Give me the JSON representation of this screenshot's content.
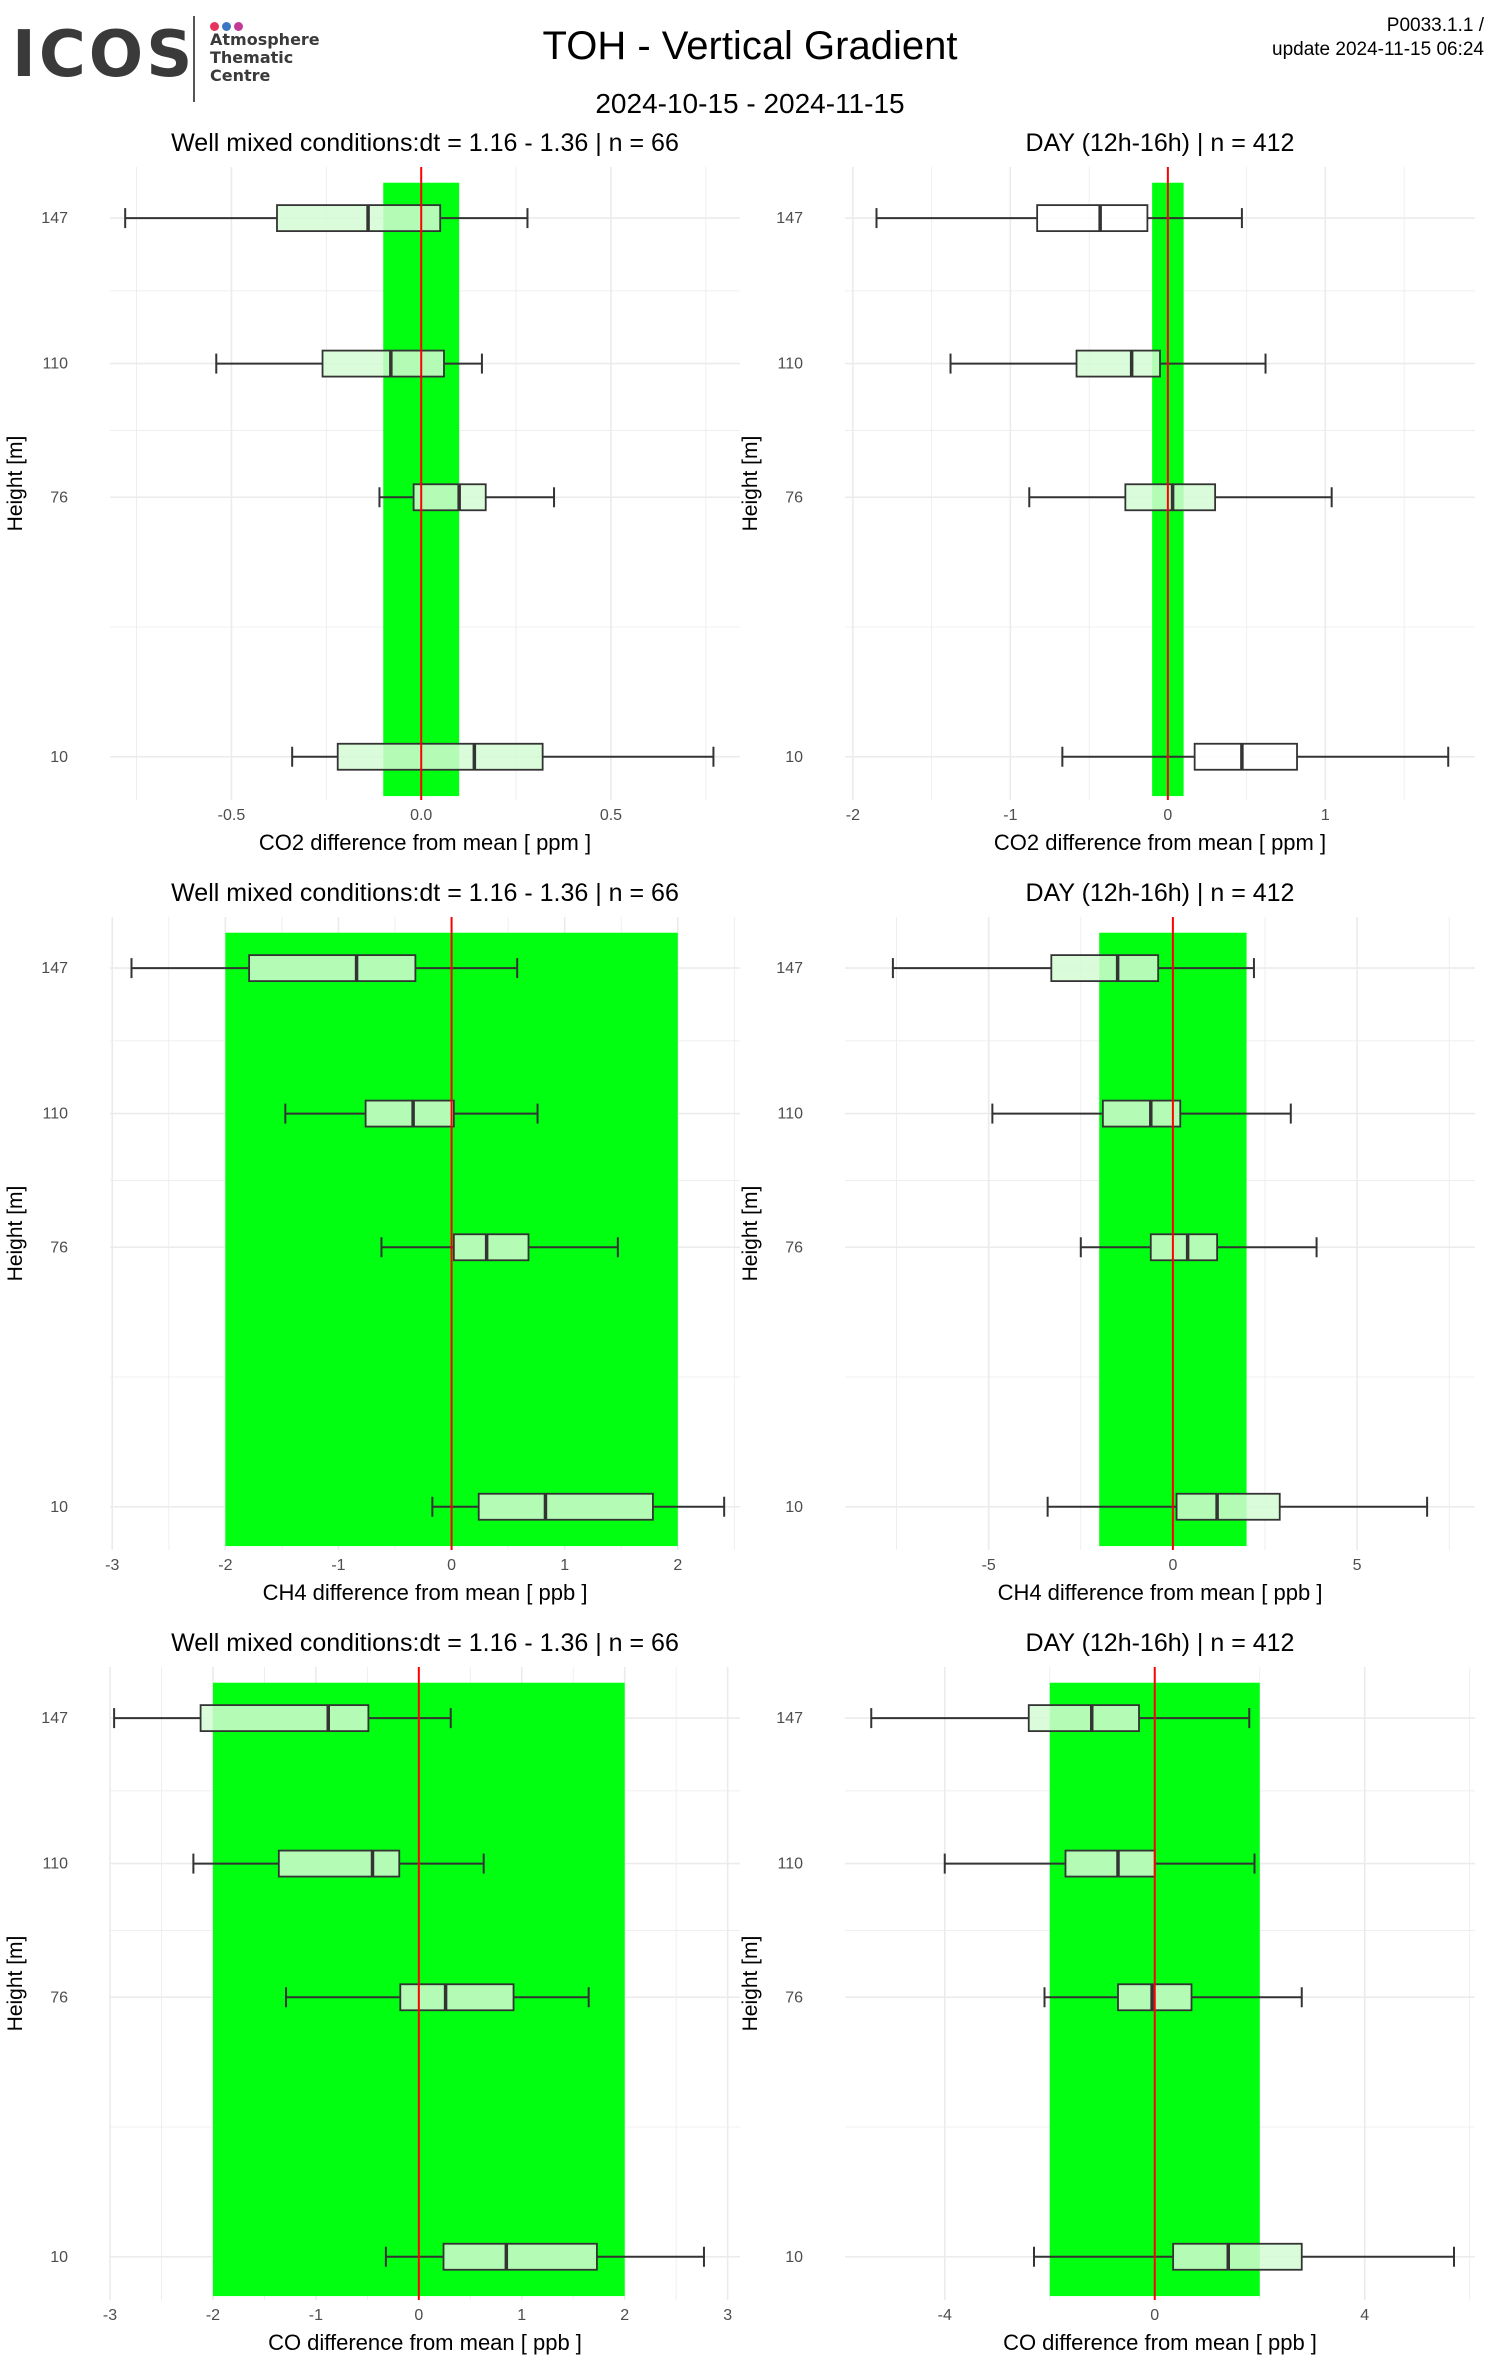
{
  "header": {
    "logo_text": "ICOS",
    "logo_sub_lines": [
      "Atmosphere",
      "Thematic",
      "Centre"
    ],
    "logo_dot_colors": [
      "#e8335c",
      "#3a76c4",
      "#c33a96"
    ],
    "title": "TOH - Vertical Gradient",
    "version": "P0033.1.1 /",
    "update": "update  2024-11-15 06:24",
    "date_range": "2024-10-15 - 2024-11-15"
  },
  "colors": {
    "band": "#00ff11",
    "zero_line": "#ff0000",
    "box_fill": "#ffffff",
    "box_fill_on_band": "#d4fcd4",
    "grid": "#ebebeb"
  },
  "chart_data": [
    {
      "type": "boxplot",
      "title": "Well mixed conditions:dt = 1.16 - 1.36 | n = 66",
      "xlabel": "CO2  difference from mean [ ppm ]",
      "ylabel": "Height [m]",
      "xlim": [
        -0.82,
        0.84
      ],
      "xticks": [
        -0.5,
        0.0,
        0.5
      ],
      "xtick_labels": [
        "-0.5",
        "0.0",
        "0.5"
      ],
      "ylim": [
        -1,
        160
      ],
      "yticks": [
        147,
        110,
        76,
        10
      ],
      "band": [
        -0.1,
        0.1
      ],
      "boxes": [
        {
          "height": 147,
          "whisker_low": -0.78,
          "q1": -0.38,
          "median": -0.14,
          "q3": 0.05,
          "whisker_high": 0.28
        },
        {
          "height": 110,
          "whisker_low": -0.54,
          "q1": -0.26,
          "median": -0.08,
          "q3": 0.06,
          "whisker_high": 0.16
        },
        {
          "height": 76,
          "whisker_low": -0.11,
          "q1": -0.02,
          "median": 0.1,
          "q3": 0.17,
          "whisker_high": 0.35
        },
        {
          "height": 10,
          "whisker_low": -0.34,
          "q1": -0.22,
          "median": 0.14,
          "q3": 0.32,
          "whisker_high": 0.77
        }
      ]
    },
    {
      "type": "boxplot",
      "title": "DAY (12h-16h) | n = 412",
      "xlabel": "CO2  difference from mean [ ppm ]",
      "ylabel": "Height [m]",
      "xlim": [
        -2.05,
        1.95
      ],
      "xticks": [
        -2,
        -1,
        0,
        1
      ],
      "xtick_labels": [
        "-2",
        "-1",
        "0",
        "1"
      ],
      "ylim": [
        -1,
        160
      ],
      "yticks": [
        147,
        110,
        76,
        10
      ],
      "band": [
        -0.1,
        0.1
      ],
      "boxes": [
        {
          "height": 147,
          "whisker_low": -1.85,
          "q1": -0.83,
          "median": -0.43,
          "q3": -0.13,
          "whisker_high": 0.47
        },
        {
          "height": 110,
          "whisker_low": -1.38,
          "q1": -0.58,
          "median": -0.23,
          "q3": -0.05,
          "whisker_high": 0.62
        },
        {
          "height": 76,
          "whisker_low": -0.88,
          "q1": -0.27,
          "median": 0.03,
          "q3": 0.3,
          "whisker_high": 1.04
        },
        {
          "height": 10,
          "whisker_low": -0.67,
          "q1": 0.17,
          "median": 0.47,
          "q3": 0.82,
          "whisker_high": 1.78
        }
      ]
    },
    {
      "type": "boxplot",
      "title": "Well mixed conditions:dt = 1.16 - 1.36 | n = 66",
      "xlabel": "CH4  difference from mean [ ppb ]",
      "ylabel": "Height [m]",
      "xlim": [
        -3.02,
        2.55
      ],
      "xticks": [
        -3,
        -2,
        -1,
        0,
        1,
        2
      ],
      "xtick_labels": [
        "-3",
        "-2",
        "-1",
        "0",
        "1",
        "2"
      ],
      "ylim": [
        -1,
        160
      ],
      "yticks": [
        147,
        110,
        76,
        10
      ],
      "band": [
        -2,
        2
      ],
      "boxes": [
        {
          "height": 147,
          "whisker_low": -2.83,
          "q1": -1.79,
          "median": -0.84,
          "q3": -0.32,
          "whisker_high": 0.58
        },
        {
          "height": 110,
          "whisker_low": -1.47,
          "q1": -0.76,
          "median": -0.34,
          "q3": 0.02,
          "whisker_high": 0.76
        },
        {
          "height": 76,
          "whisker_low": -0.62,
          "q1": 0.02,
          "median": 0.31,
          "q3": 0.68,
          "whisker_high": 1.47
        },
        {
          "height": 10,
          "whisker_low": -0.17,
          "q1": 0.24,
          "median": 0.83,
          "q3": 1.78,
          "whisker_high": 2.41
        }
      ]
    },
    {
      "type": "boxplot",
      "title": "DAY (12h-16h) | n = 412",
      "xlabel": "CH4  difference from mean [ ppb ]",
      "ylabel": "Height [m]",
      "xlim": [
        -8.9,
        8.2
      ],
      "xticks": [
        -5,
        0,
        5
      ],
      "xtick_labels": [
        "-5",
        "0",
        "5"
      ],
      "ylim": [
        -1,
        160
      ],
      "yticks": [
        147,
        110,
        76,
        10
      ],
      "band": [
        -2,
        2
      ],
      "boxes": [
        {
          "height": 147,
          "whisker_low": -7.6,
          "q1": -3.3,
          "median": -1.5,
          "q3": -0.4,
          "whisker_high": 2.2
        },
        {
          "height": 110,
          "whisker_low": -4.9,
          "q1": -1.9,
          "median": -0.6,
          "q3": 0.2,
          "whisker_high": 3.2
        },
        {
          "height": 76,
          "whisker_low": -2.5,
          "q1": -0.6,
          "median": 0.4,
          "q3": 1.2,
          "whisker_high": 3.9
        },
        {
          "height": 10,
          "whisker_low": -3.4,
          "q1": 0.1,
          "median": 1.2,
          "q3": 2.9,
          "whisker_high": 6.9
        }
      ]
    },
    {
      "type": "boxplot",
      "title": "Well mixed conditions:dt = 1.16 - 1.36 | n = 66",
      "xlabel": "CO  difference from mean [ ppb ]",
      "ylabel": "Height [m]",
      "xlim": [
        -3.0,
        3.12
      ],
      "xticks": [
        -3,
        -2,
        -1,
        0,
        1,
        2,
        3
      ],
      "xtick_labels": [
        "-3",
        "-2",
        "-1",
        "0",
        "1",
        "2",
        "3"
      ],
      "ylim": [
        -1,
        160
      ],
      "yticks": [
        147,
        110,
        76,
        10
      ],
      "band": [
        -2,
        2
      ],
      "boxes": [
        {
          "height": 147,
          "whisker_low": -2.96,
          "q1": -2.12,
          "median": -0.88,
          "q3": -0.49,
          "whisker_high": 0.31
        },
        {
          "height": 110,
          "whisker_low": -2.19,
          "q1": -1.36,
          "median": -0.45,
          "q3": -0.19,
          "whisker_high": 0.63
        },
        {
          "height": 76,
          "whisker_low": -1.29,
          "q1": -0.18,
          "median": 0.26,
          "q3": 0.92,
          "whisker_high": 1.65
        },
        {
          "height": 10,
          "whisker_low": -0.32,
          "q1": 0.24,
          "median": 0.85,
          "q3": 1.73,
          "whisker_high": 2.77
        }
      ]
    },
    {
      "type": "boxplot",
      "title": "DAY (12h-16h) | n = 412",
      "xlabel": "CO  difference from mean [ ppb ]",
      "ylabel": "Height [m]",
      "xlim": [
        -5.9,
        6.1
      ],
      "xticks": [
        -4,
        0,
        4
      ],
      "xtick_labels": [
        "-4",
        "0",
        "4"
      ],
      "ylim": [
        -1,
        160
      ],
      "yticks": [
        147,
        110,
        76,
        10
      ],
      "band": [
        -2,
        2
      ],
      "boxes": [
        {
          "height": 147,
          "whisker_low": -5.4,
          "q1": -2.4,
          "median": -1.2,
          "q3": -0.3,
          "whisker_high": 1.8
        },
        {
          "height": 110,
          "whisker_low": -4.0,
          "q1": -1.7,
          "median": -0.7,
          "q3": 0.0,
          "whisker_high": 1.9
        },
        {
          "height": 76,
          "whisker_low": -2.1,
          "q1": -0.7,
          "median": -0.05,
          "q3": 0.7,
          "whisker_high": 2.8
        },
        {
          "height": 10,
          "whisker_low": -2.3,
          "q1": 0.35,
          "median": 1.4,
          "q3": 2.8,
          "whisker_high": 5.7
        }
      ]
    }
  ]
}
